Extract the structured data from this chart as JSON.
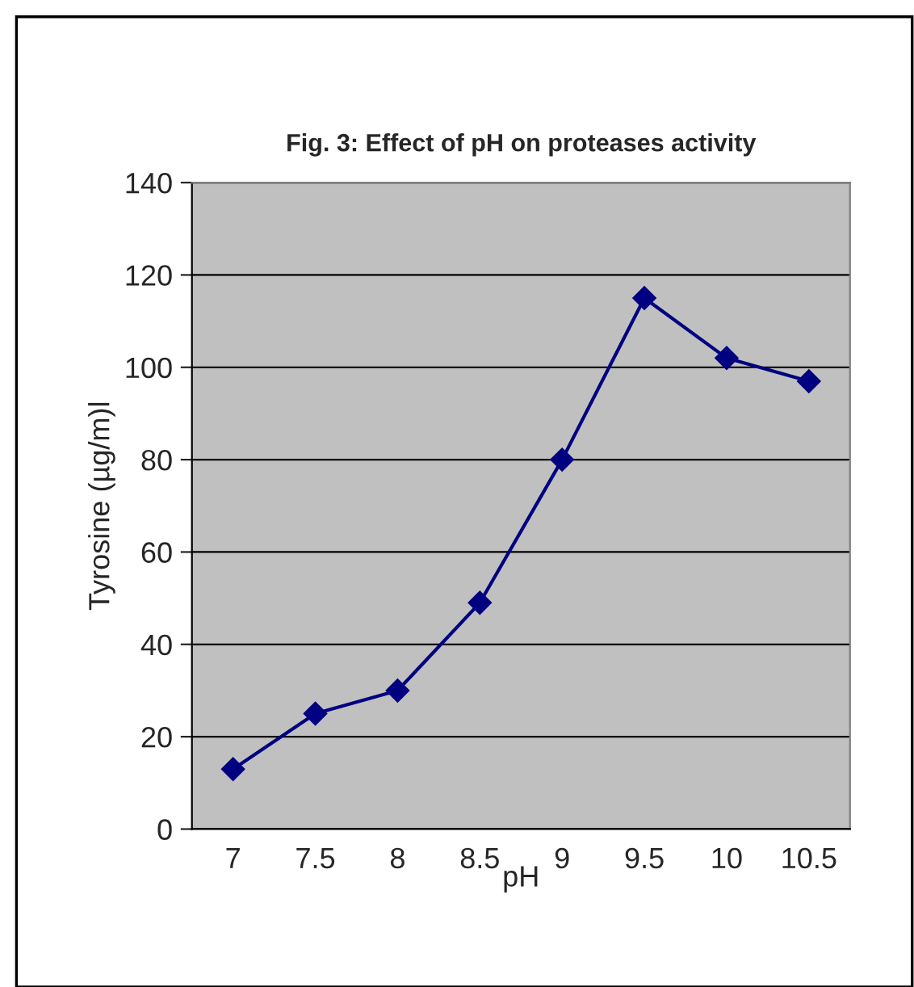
{
  "chart_data": {
    "type": "line",
    "title": "Fig. 3: Effect of pH on proteases activity",
    "xlabel": "pH",
    "ylabel": "Tyrosine (µg/m)l",
    "categories": [
      "7",
      "7.5",
      "8",
      "8.5",
      "9",
      "9.5",
      "10",
      "10.5"
    ],
    "series": [
      {
        "color": "#000080",
        "values": [
          13,
          25,
          30,
          49,
          80,
          115,
          102,
          97
        ]
      }
    ],
    "ylim": [
      0,
      140
    ],
    "yticks": [
      0,
      20,
      40,
      60,
      80,
      100,
      120,
      140
    ],
    "grid": "y",
    "marker": "diamond",
    "line_style": "solid"
  }
}
